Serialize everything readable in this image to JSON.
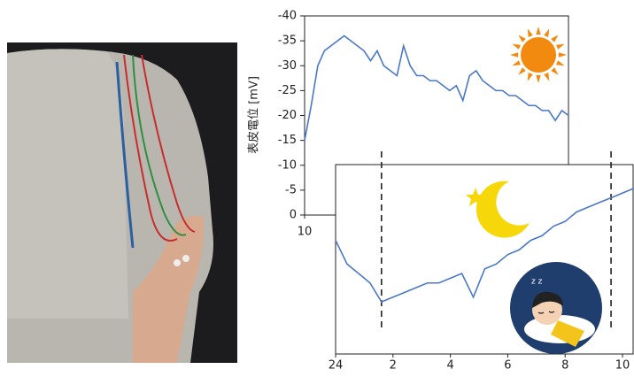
{
  "chart_data": [
    {
      "type": "line",
      "y_label": "表皮電位 [mV]",
      "x": [
        10,
        10.2,
        10.4,
        10.6,
        10.8,
        11,
        11.2,
        11.4,
        11.6,
        11.8,
        12,
        12.2,
        12.4,
        12.6,
        12.8,
        13,
        13.2,
        13.4,
        13.6,
        13.8,
        14,
        14.2,
        14.4,
        14.6,
        14.8,
        15,
        15.2,
        15.4,
        15.6,
        15.8,
        16,
        16.2,
        16.4,
        16.6,
        16.8,
        17,
        17.2,
        17.4,
        17.6,
        17.8,
        18
      ],
      "series": [
        {
          "color": "#4a78c8",
          "values": [
            -15,
            -22,
            -30,
            -33,
            -34,
            -35,
            -36,
            -35,
            -34,
            -33,
            -31,
            -33,
            -30,
            -29,
            -28,
            -34,
            -30,
            -28,
            -28,
            -27,
            -27,
            -26,
            -25,
            -26,
            -23,
            -28,
            -29,
            -27,
            -26,
            -25,
            -25,
            -24,
            -24,
            -23,
            -22,
            -22,
            -21,
            -21,
            -19,
            -21,
            -20
          ]
        }
      ],
      "xlim": [
        10,
        18
      ],
      "xticks": [
        10
      ],
      "ylim": [
        0,
        -40
      ],
      "yticks": [
        -40,
        -35,
        -30,
        -25,
        -20,
        -15,
        -10,
        -5,
        0
      ]
    },
    {
      "type": "line",
      "x": [
        24,
        24.4,
        24.8,
        25.2,
        25.6,
        26,
        26.4,
        26.8,
        27.2,
        27.6,
        28,
        28.4,
        28.8,
        29.2,
        29.6,
        30,
        30.4,
        30.8,
        31.2,
        31.6,
        32,
        32.4,
        32.8,
        33.2,
        33.6,
        34,
        34.4
      ],
      "series": [
        {
          "color": "#4a78c8",
          "values": [
            -24,
            -19,
            -17,
            -15,
            -11,
            -12,
            -13,
            -14,
            -15,
            -15,
            -16,
            -17,
            -12,
            -18,
            -19,
            -21,
            -22,
            -24,
            -25,
            -27,
            -28,
            -30,
            -31,
            -32,
            -33,
            -34,
            -35
          ]
        }
      ],
      "xlim": [
        24,
        34.4
      ],
      "xticks": [
        24,
        {
          "value": 26,
          "label": "2"
        },
        {
          "value": 28,
          "label": "4"
        },
        {
          "value": 30,
          "label": "6"
        },
        {
          "value": 32,
          "label": "8"
        },
        {
          "value": 34,
          "label": "10"
        }
      ],
      "ylim": [
        0,
        -40
      ],
      "vlines": [
        25.6,
        33.6
      ]
    }
  ]
}
